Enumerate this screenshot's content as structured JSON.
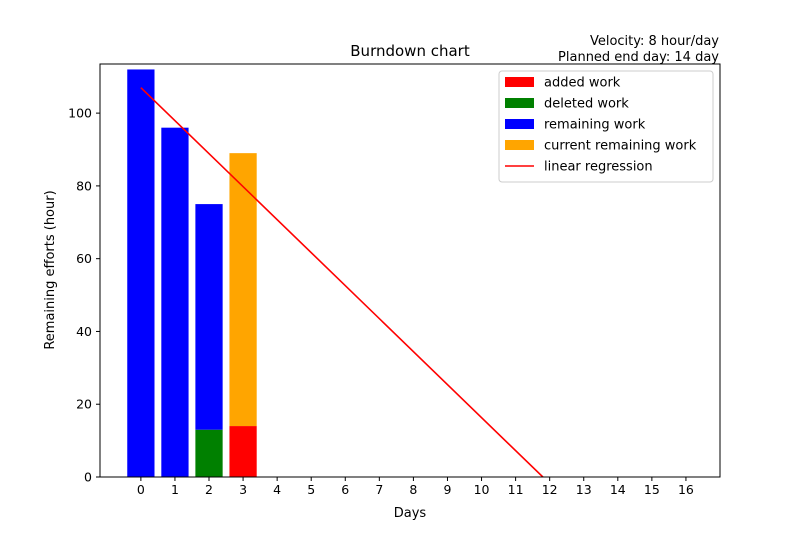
{
  "chart_data": {
    "type": "bar",
    "title": "Burndown chart",
    "info_lines": [
      "Velocity: 8 hour/day",
      "Planned end day: 14 day"
    ],
    "xlabel": "Days",
    "ylabel": "Remaining efforts (hour)",
    "xlim": [
      -1.2,
      17.0
    ],
    "ylim": [
      0,
      113.5
    ],
    "x_ticks": [
      0,
      1,
      2,
      3,
      4,
      5,
      6,
      7,
      8,
      9,
      10,
      11,
      12,
      13,
      14,
      15,
      16
    ],
    "y_ticks": [
      0,
      20,
      40,
      60,
      80,
      100
    ],
    "grid": false,
    "legend_position": "top-right",
    "series": [
      {
        "name": "added work",
        "color": "#ff0000",
        "kind": "bar",
        "points": [
          {
            "x": 3,
            "bottom": 0,
            "top": 14
          }
        ]
      },
      {
        "name": "deleted work",
        "color": "#008000",
        "kind": "bar",
        "points": [
          {
            "x": 2,
            "bottom": 0,
            "top": 13
          }
        ]
      },
      {
        "name": "remaining work",
        "color": "#0000ff",
        "kind": "bar",
        "points": [
          {
            "x": 0,
            "bottom": 0,
            "top": 112
          },
          {
            "x": 1,
            "bottom": 0,
            "top": 96
          },
          {
            "x": 2,
            "bottom": 13,
            "top": 75
          }
        ]
      },
      {
        "name": "current remaining work",
        "color": "#ffa500",
        "kind": "bar",
        "points": [
          {
            "x": 3,
            "bottom": 14,
            "top": 89
          }
        ]
      },
      {
        "name": "linear regression",
        "color": "#ff0000",
        "kind": "line",
        "points": [
          {
            "x": 0,
            "y": 107
          },
          {
            "x": 11.8,
            "y": 0
          }
        ]
      }
    ]
  }
}
